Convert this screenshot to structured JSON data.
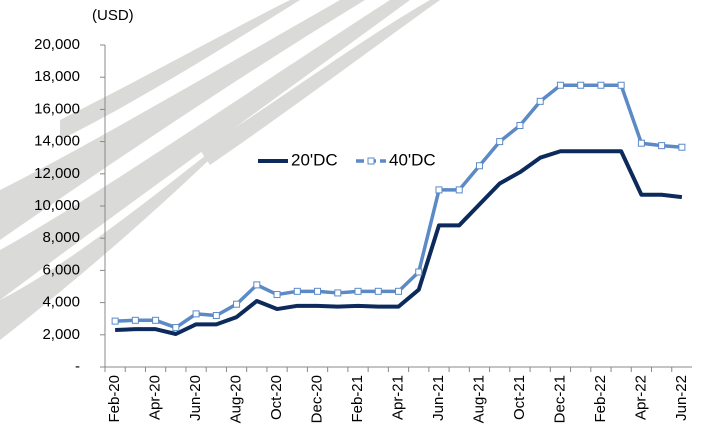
{
  "chart_data": {
    "type": "line",
    "y_label": "(USD)",
    "categories": [
      "Feb-20",
      null,
      "Apr-20",
      null,
      "Jun-20",
      null,
      "Aug-20",
      null,
      "Oct-20",
      null,
      "Dec-20",
      null,
      "Feb-21",
      null,
      "Apr-21",
      null,
      "Jun-21",
      null,
      "Aug-21",
      null,
      "Oct-21",
      null,
      "Dec-21",
      null,
      "Feb-22",
      null,
      "Apr-22",
      null,
      "Jun-22"
    ],
    "series": [
      {
        "name": "20'DC",
        "color": "#0d2a5c",
        "values": [
          2300,
          2350,
          2350,
          2050,
          2650,
          2650,
          3100,
          4100,
          3600,
          3800,
          3800,
          3750,
          3800,
          3750,
          3750,
          4800,
          8800,
          8800,
          10100,
          11400,
          12100,
          13000,
          13400,
          13400,
          13400,
          13400,
          10700,
          10700,
          10550
        ]
      },
      {
        "name": "40'DC",
        "color": "#5b8ac6",
        "values": [
          2850,
          2900,
          2900,
          2450,
          3300,
          3200,
          3900,
          5100,
          4500,
          4700,
          4700,
          4600,
          4700,
          4700,
          4700,
          5900,
          11000,
          11000,
          12500,
          14000,
          15000,
          16500,
          17500,
          17500,
          17500,
          17500,
          13900,
          13750,
          13650
        ]
      }
    ],
    "ylim": [
      0,
      20000
    ],
    "yticks": [
      {
        "value": 0,
        "label": "-"
      },
      {
        "value": 2000,
        "label": "2,000"
      },
      {
        "value": 4000,
        "label": "4,000"
      },
      {
        "value": 6000,
        "label": "6,000"
      },
      {
        "value": 8000,
        "label": "8,000"
      },
      {
        "value": 10000,
        "label": "10,000"
      },
      {
        "value": 12000,
        "label": "12,000"
      },
      {
        "value": 14000,
        "label": "14,000"
      },
      {
        "value": 16000,
        "label": "16,000"
      },
      {
        "value": 18000,
        "label": "18,000"
      },
      {
        "value": 20000,
        "label": "20,000"
      }
    ]
  }
}
